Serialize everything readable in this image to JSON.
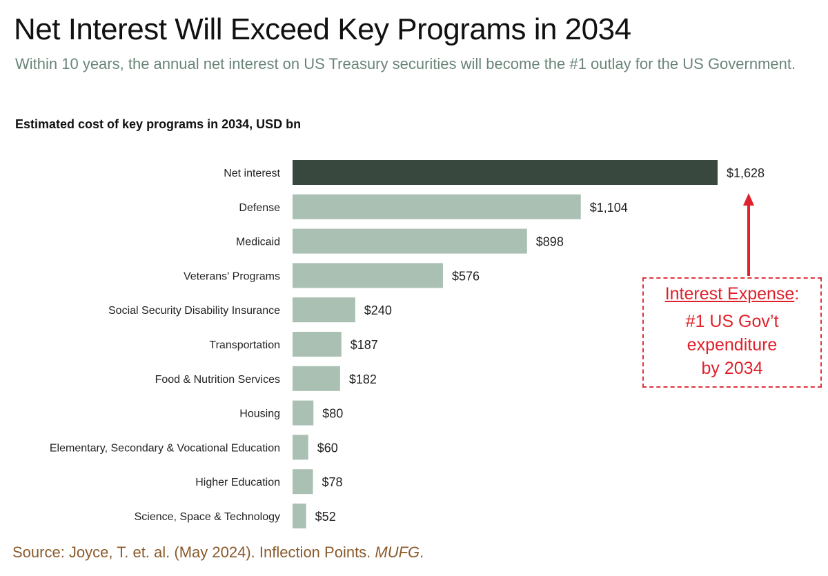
{
  "title": "Net Interest Will Exceed Key Programs in 2034",
  "subtitle": "Within 10 years, the annual net interest on US Treasury securities will become the #1 outlay for the US Government.",
  "source": {
    "text": "Source: Joyce, T. et. al. (May 2024). Inflection Points. ",
    "italic": "MUFG",
    "end": "."
  },
  "callout": {
    "heading": "Interest Expense",
    "colon": ":",
    "lines": [
      "#1 US Gov’t",
      "expenditure",
      "by 2034"
    ],
    "color": "#e0202a"
  },
  "chart_data": {
    "type": "bar",
    "orientation": "horizontal",
    "title": "Estimated cost of key programs in 2034, USD bn",
    "categories": [
      "Net interest",
      "Defense",
      "Medicaid",
      "Veterans' Programs",
      "Social Security Disability Insurance",
      "Transportation",
      "Food & Nutrition Services",
      "Housing",
      "Elementary, Secondary & Vocational Education",
      "Higher Education",
      "Science, Space & Technology"
    ],
    "values": [
      1628,
      1104,
      898,
      576,
      240,
      187,
      182,
      80,
      60,
      78,
      52
    ],
    "labels": [
      "$1,628",
      "$1,104",
      "$898",
      "$576",
      "$240",
      "$187",
      "$182",
      "$80",
      "$60",
      "$78",
      "$52"
    ],
    "colors": {
      "highlight": "#38483f",
      "default": "#a9c0b3"
    },
    "grid": false
  }
}
